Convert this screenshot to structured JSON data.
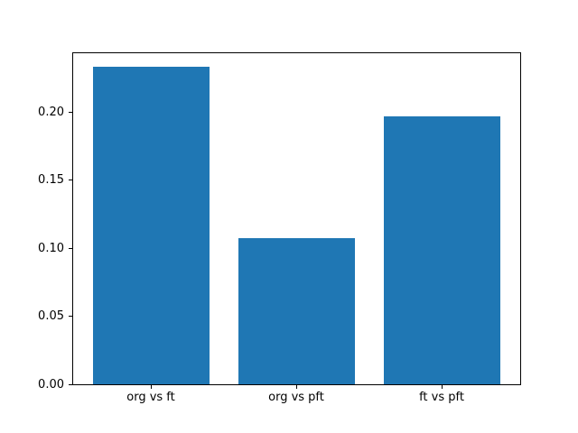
{
  "chart_data": {
    "type": "bar",
    "title": "",
    "xlabel": "",
    "ylabel": "",
    "categories": [
      "org vs ft",
      "org vs pft",
      "ft vs pft"
    ],
    "values": [
      0.233,
      0.107,
      0.197
    ],
    "ylim": [
      0,
      0.2437
    ],
    "yticks": [
      0,
      0.05,
      0.1,
      0.15,
      0.2
    ],
    "ytick_labels": [
      "0.00",
      "0.05",
      "0.10",
      "0.15",
      "0.20"
    ],
    "bar_color": "#1f77b4",
    "spine_color": "#000000",
    "background_color": "#ffffff",
    "bar_width_fraction": 0.8,
    "grid": false,
    "legend": null
  }
}
